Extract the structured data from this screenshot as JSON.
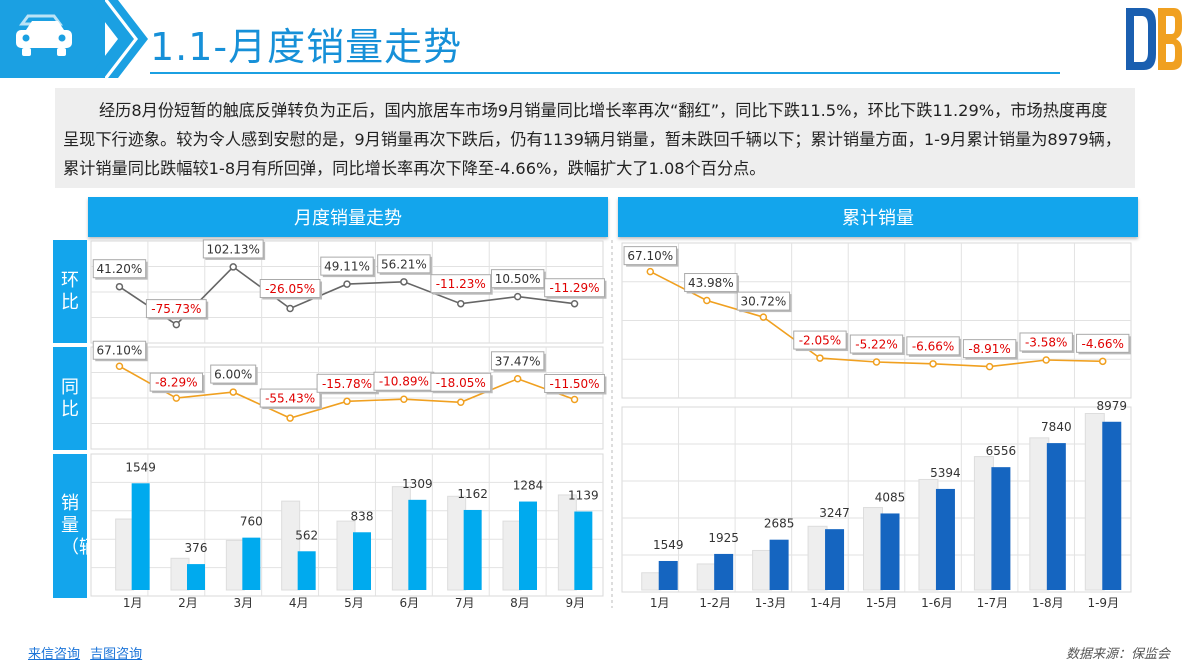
{
  "header": {
    "title": "1.1-月度销量走势"
  },
  "summary": "经历8月份短暂的触底反弹转负为正后，国内旅居车市场9月销量同比增长率再次“翻红”，同比下跌11.5%，环比下跌11.29%，市场热度再度呈现下行迹象。较为令人感到安慰的是，9月销量再次下跌后，仍有1139辆月销量，暂未跌回千辆以下；累计销量方面，1-9月累计销量为8979辆，累计销量同比跌幅较1-8月有所回弹，同比增长率再次下降至-4.66%，跌幅扩大了1.08个百分点。",
  "left_panel": {
    "title": "月度销量走势",
    "side_labels": [
      "环比",
      "同比",
      "销量（辆）"
    ]
  },
  "right_panel": {
    "title": "累计销量"
  },
  "footer": {
    "links": [
      "来信咨询",
      "吉图咨询"
    ],
    "source": "数据来源：保监会"
  },
  "colors": {
    "accent": "#13a5ec",
    "bar_light": "#eeeeee",
    "bar_blue": "#00aaee",
    "bar_dark": "#1565c0",
    "line_gray": "#666666",
    "line_orange": "#f0a020",
    "negative_text": "#e00000"
  },
  "chart_data": [
    {
      "type": "line",
      "name": "环比",
      "categories": [
        "1月",
        "2月",
        "3月",
        "4月",
        "5月",
        "6月",
        "7月",
        "8月",
        "9月"
      ],
      "values": [
        41.2,
        -75.73,
        102.13,
        -26.05,
        49.11,
        56.21,
        -11.23,
        10.5,
        -11.29
      ],
      "labels": [
        "41.20%",
        "-75.73%",
        "102.13%",
        "-26.05%",
        "49.11%",
        "56.21%",
        "-11.23%",
        "10.50%",
        "-11.29%"
      ],
      "color": "#666666"
    },
    {
      "type": "line",
      "name": "同比",
      "categories": [
        "1月",
        "2月",
        "3月",
        "4月",
        "5月",
        "6月",
        "7月",
        "8月",
        "9月"
      ],
      "values": [
        67.1,
        -8.29,
        6.0,
        -55.43,
        -15.78,
        -10.89,
        -18.05,
        37.47,
        -11.5
      ],
      "labels": [
        "67.10%",
        "-8.29%",
        "6.00%",
        "-55.43%",
        "-15.78%",
        "-10.89%",
        "-18.05%",
        "37.47%",
        "-11.50%"
      ],
      "color": "#f0a020"
    },
    {
      "type": "bar",
      "name": "销量（辆）",
      "categories": [
        "1月",
        "2月",
        "3月",
        "4月",
        "5月",
        "6月",
        "7月",
        "8月",
        "9月"
      ],
      "series": [
        {
          "values": [
            1030,
            460,
            720,
            1290,
            1000,
            1500,
            1360,
            1000,
            1380
          ]
        },
        {
          "values": [
            1549,
            376,
            760,
            562,
            838,
            1309,
            1162,
            1284,
            1139
          ]
        }
      ],
      "labels": [
        "1549",
        "376",
        "760",
        "562",
        "838",
        "1309",
        "1162",
        "1284",
        "1139"
      ],
      "ylim": [
        0,
        1800
      ]
    },
    {
      "type": "line",
      "name": "累计同比",
      "categories": [
        "1月",
        "1-2月",
        "1-3月",
        "1-4月",
        "1-5月",
        "1-6月",
        "1-7月",
        "1-8月",
        "1-9月"
      ],
      "values": [
        67.1,
        43.98,
        30.72,
        -2.05,
        -5.22,
        -6.66,
        -8.91,
        -3.58,
        -4.66
      ],
      "labels": [
        "67.10%",
        "43.98%",
        "30.72%",
        "-2.05%",
        "-5.22%",
        "-6.66%",
        "-8.91%",
        "-3.58%",
        "-4.66%"
      ],
      "color": "#f0a020"
    },
    {
      "type": "bar",
      "name": "累计销量",
      "categories": [
        "1月",
        "1-2月",
        "1-3月",
        "1-4月",
        "1-5月",
        "1-6月",
        "1-7月",
        "1-8月",
        "1-9月"
      ],
      "series": [
        {
          "values": [
            920,
            1390,
            2110,
            3400,
            4400,
            5900,
            7120,
            8120,
            9420
          ]
        },
        {
          "values": [
            1549,
            1925,
            2685,
            3247,
            4085,
            5394,
            6556,
            7840,
            8979
          ]
        }
      ],
      "labels": [
        "1549",
        "1925",
        "2685",
        "3247",
        "4085",
        "5394",
        "6556",
        "7840",
        "8979"
      ],
      "ylim": [
        0,
        9500
      ]
    }
  ]
}
